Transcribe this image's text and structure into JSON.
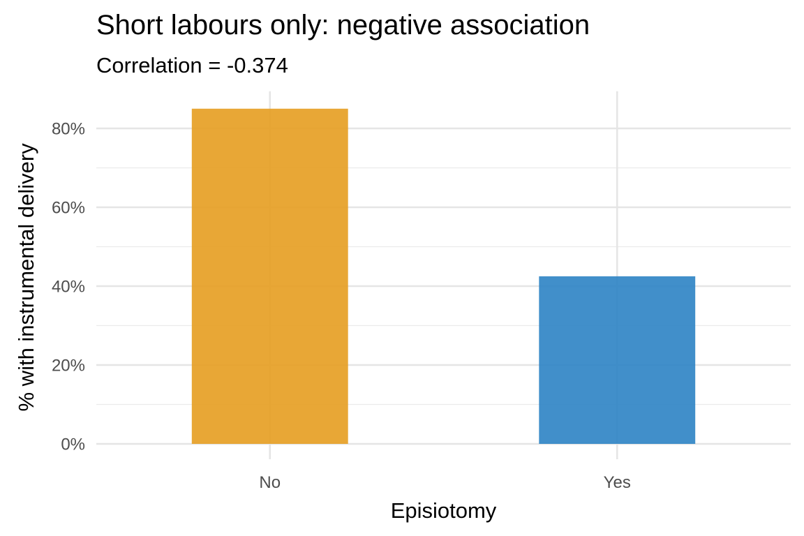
{
  "chart_data": {
    "type": "bar",
    "title": "Short labours only: negative association",
    "subtitle": "Correlation = -0.374",
    "xlabel": "Episiotomy",
    "ylabel": "% with instrumental delivery",
    "categories": [
      "No",
      "Yes"
    ],
    "values": [
      85,
      42.5
    ],
    "bar_colors": [
      "#E69F25",
      "#3185C6"
    ],
    "ylim": [
      0,
      88
    ],
    "y_ticks": [
      0,
      20,
      40,
      60,
      80
    ],
    "y_tick_labels": [
      "0%",
      "20%",
      "40%",
      "60%",
      "80%"
    ],
    "grid": true,
    "legend": "none"
  }
}
